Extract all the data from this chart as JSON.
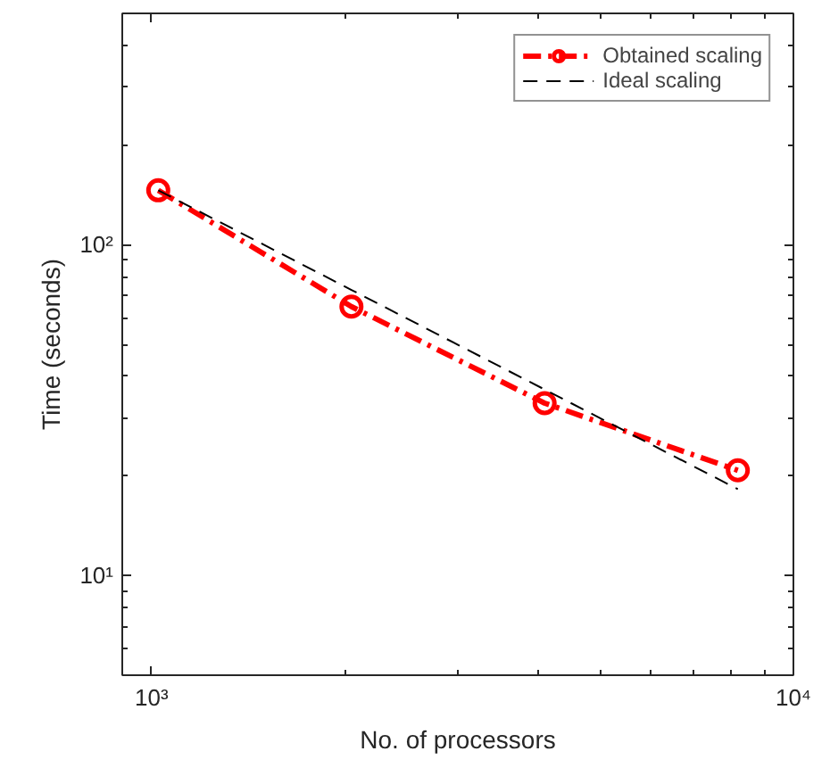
{
  "chart_data": {
    "type": "line",
    "xlabel": "No. of processors",
    "ylabel": "Time (seconds)",
    "x": [
      1024,
      2048,
      4096,
      8192
    ],
    "series": [
      {
        "name": "Obtained scaling",
        "color": "#ff0000",
        "values": [
          146,
          65,
          33.2,
          20.8
        ],
        "marker": "circle",
        "line_style": "dashdot"
      },
      {
        "name": "Ideal scaling",
        "color": "#000000",
        "values": [
          146,
          73,
          36.5,
          18.25
        ],
        "marker": "none",
        "line_style": "dashed"
      }
    ],
    "log": "xy",
    "xlim": [
      900,
      10000
    ],
    "ylim": [
      5,
      500
    ],
    "xticks": [
      {
        "value": 1000,
        "label": "10³"
      },
      {
        "value": 10000,
        "label": "10⁴"
      }
    ],
    "yticks": [
      {
        "value": 10,
        "label": "10¹"
      },
      {
        "value": 100,
        "label": "10²"
      }
    ],
    "grid": false,
    "legend": "top right"
  }
}
